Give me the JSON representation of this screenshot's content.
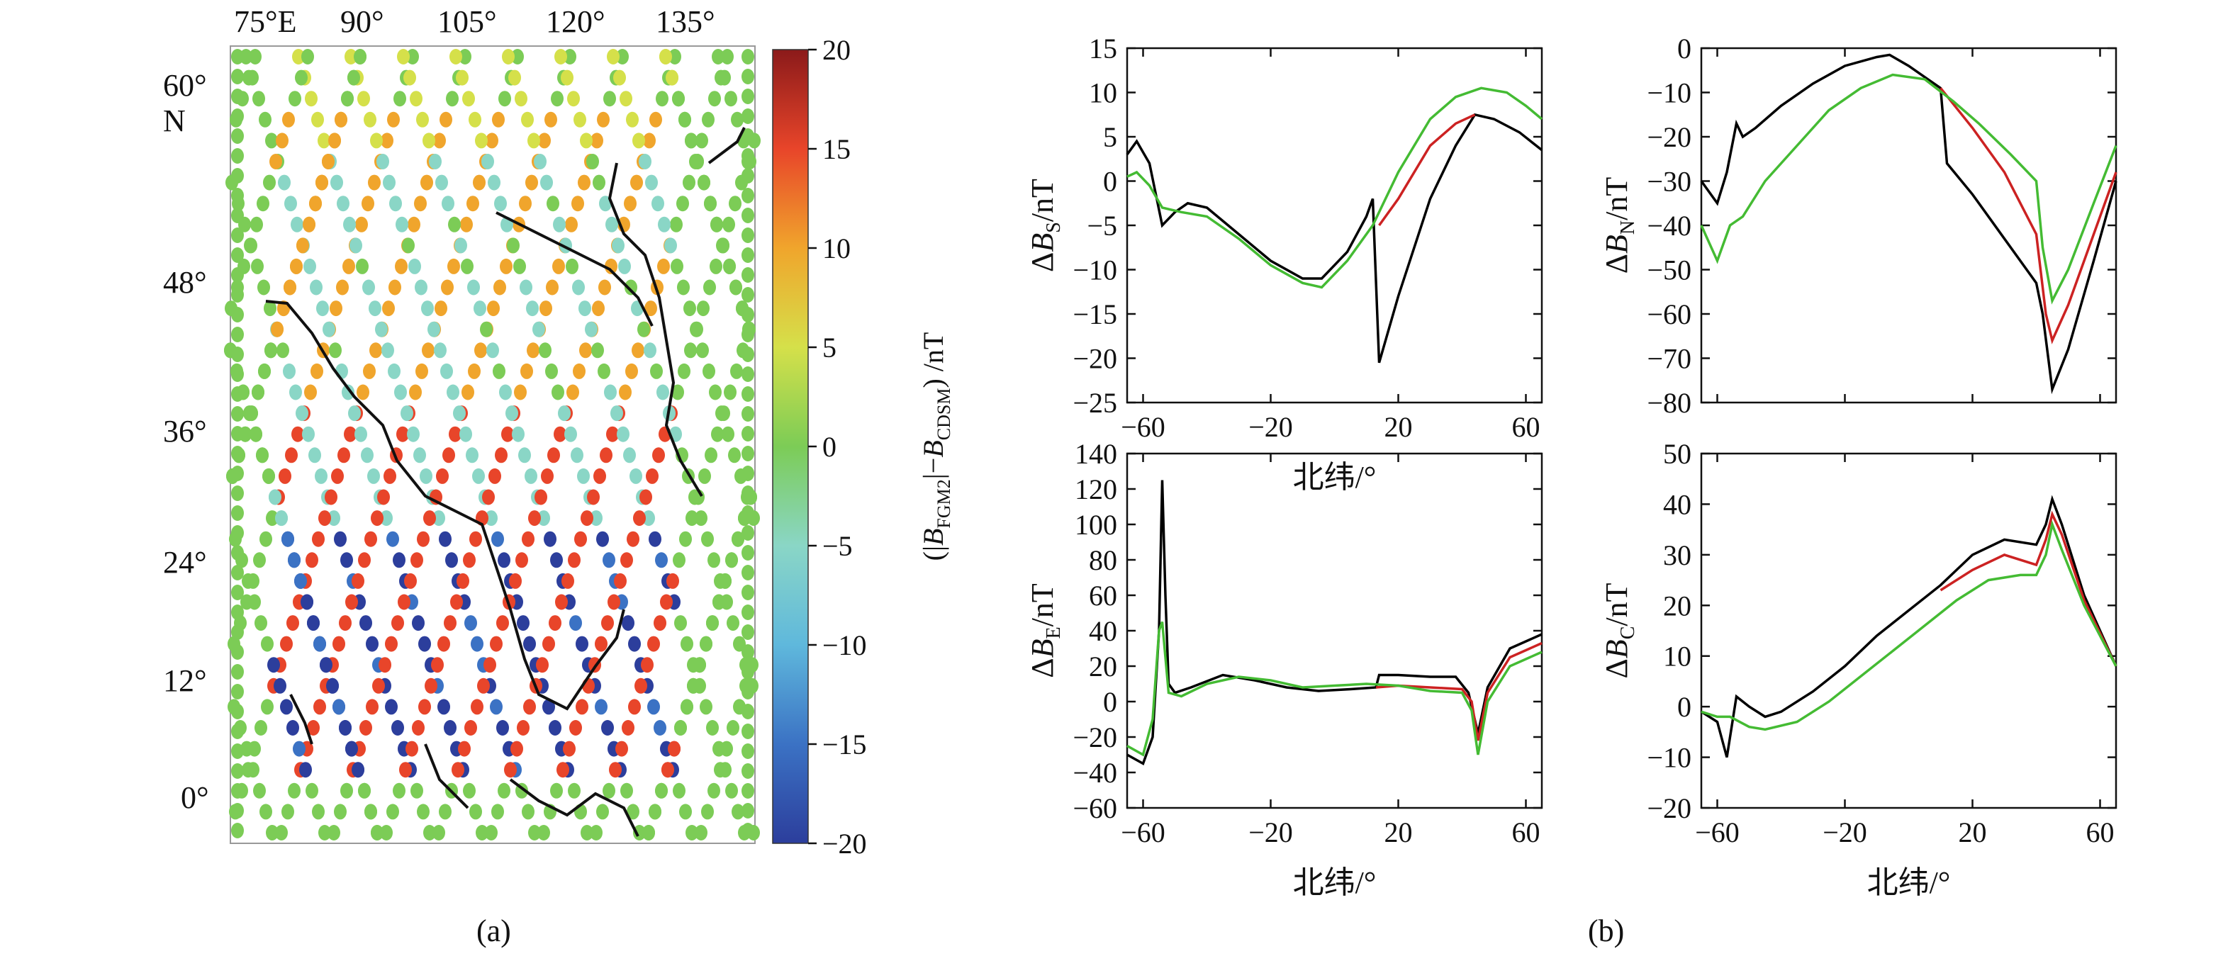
{
  "panel_labels": {
    "a": "(a)",
    "b": "(b)"
  },
  "map": {
    "lon_ticks": [
      "75°E",
      "90°",
      "105°",
      "120°",
      "135°"
    ],
    "lat_ticks": [
      "60°\nN",
      "48°",
      "36°",
      "24°",
      "12°",
      "0°"
    ],
    "lat_tick_lines": [
      "60°",
      "N"
    ],
    "colorbar_label": "(|B_FGM2|−B_CDSM) /nT",
    "colorbar_ticks": [
      "20",
      "15",
      "10",
      "5",
      "0",
      "−5",
      "−10",
      "−15",
      "−20"
    ],
    "colorbar_range": [
      -20,
      20
    ],
    "colormap": [
      "#2c3e9c",
      "#3b72c4",
      "#5fb8dc",
      "#8ad6c6",
      "#7ccc56",
      "#d5e04a",
      "#f0a52c",
      "#e8452a",
      "#8b1a1a"
    ]
  },
  "chart_data": [
    {
      "type": "line",
      "ylabel": "ΔB_S/nT",
      "xlabel": "北纬/°",
      "xlim": [
        -65,
        65
      ],
      "ylim": [
        -25,
        15
      ],
      "xticks": [
        "−60",
        "−20",
        "20",
        "60"
      ],
      "yticks": [
        "15",
        "10",
        "5",
        "0",
        "−5",
        "−10",
        "−15",
        "−20",
        "−25"
      ],
      "series": [
        {
          "color": "#000000",
          "points": [
            [
              -65,
              3
            ],
            [
              -62,
              4.5
            ],
            [
              -58,
              2
            ],
            [
              -54,
              -5
            ],
            [
              -50,
              -3.5
            ],
            [
              -46,
              -2.5
            ],
            [
              -40,
              -3
            ],
            [
              -30,
              -6
            ],
            [
              -20,
              -9
            ],
            [
              -10,
              -11
            ],
            [
              -4,
              -11
            ],
            [
              4,
              -8
            ],
            [
              10,
              -4
            ],
            [
              12,
              -2
            ],
            [
              14,
              -20.5
            ],
            [
              20,
              -13
            ],
            [
              30,
              -2
            ],
            [
              38,
              4
            ],
            [
              44,
              7.5
            ],
            [
              50,
              7
            ],
            [
              58,
              5.5
            ],
            [
              65,
              3.5
            ]
          ]
        },
        {
          "color": "#cc2222",
          "points": [
            [
              14,
              -5
            ],
            [
              20,
              -2
            ],
            [
              30,
              4
            ],
            [
              38,
              6.5
            ],
            [
              44,
              7.5
            ]
          ]
        },
        {
          "color": "#44bb33",
          "points": [
            [
              -65,
              0.5
            ],
            [
              -62,
              1
            ],
            [
              -58,
              -0.5
            ],
            [
              -54,
              -3
            ],
            [
              -48,
              -3.5
            ],
            [
              -40,
              -4
            ],
            [
              -30,
              -6.5
            ],
            [
              -20,
              -9.5
            ],
            [
              -10,
              -11.5
            ],
            [
              -4,
              -12
            ],
            [
              4,
              -9
            ],
            [
              12,
              -5
            ],
            [
              20,
              1
            ],
            [
              30,
              7
            ],
            [
              38,
              9.5
            ],
            [
              46,
              10.5
            ],
            [
              54,
              10
            ],
            [
              60,
              8.5
            ],
            [
              65,
              7
            ]
          ]
        }
      ]
    },
    {
      "type": "line",
      "ylabel": "ΔB_N/nT",
      "xlabel": "",
      "xlim": [
        -65,
        65
      ],
      "ylim": [
        -80,
        0
      ],
      "xticks": [],
      "yticks": [
        "0",
        "−10",
        "−20",
        "−30",
        "−40",
        "−50",
        "−60",
        "−70",
        "−80"
      ],
      "series": [
        {
          "color": "#000000",
          "points": [
            [
              -65,
              -30
            ],
            [
              -60,
              -35
            ],
            [
              -57,
              -28
            ],
            [
              -54,
              -17
            ],
            [
              -52,
              -20
            ],
            [
              -48,
              -18
            ],
            [
              -40,
              -13
            ],
            [
              -30,
              -8
            ],
            [
              -20,
              -4
            ],
            [
              -10,
              -2
            ],
            [
              -6,
              -1.5
            ],
            [
              0,
              -4
            ],
            [
              6,
              -7
            ],
            [
              10,
              -9
            ],
            [
              12,
              -26
            ],
            [
              20,
              -33
            ],
            [
              30,
              -43
            ],
            [
              40,
              -53
            ],
            [
              42,
              -60
            ],
            [
              45,
              -77
            ],
            [
              50,
              -68
            ],
            [
              58,
              -48
            ],
            [
              65,
              -30
            ]
          ]
        },
        {
          "color": "#cc2222",
          "points": [
            [
              10,
              -9
            ],
            [
              20,
              -18
            ],
            [
              30,
              -28
            ],
            [
              40,
              -42
            ],
            [
              43,
              -60
            ],
            [
              45,
              -66
            ],
            [
              50,
              -58
            ],
            [
              58,
              -42
            ],
            [
              65,
              -28
            ]
          ]
        },
        {
          "color": "#44bb33",
          "points": [
            [
              -65,
              -40
            ],
            [
              -60,
              -48
            ],
            [
              -56,
              -40
            ],
            [
              -52,
              -38
            ],
            [
              -45,
              -30
            ],
            [
              -35,
              -22
            ],
            [
              -25,
              -14
            ],
            [
              -15,
              -9
            ],
            [
              -5,
              -6
            ],
            [
              5,
              -7
            ],
            [
              14,
              -12
            ],
            [
              22,
              -17
            ],
            [
              32,
              -24
            ],
            [
              40,
              -30
            ],
            [
              42,
              -45
            ],
            [
              45,
              -57
            ],
            [
              50,
              -50
            ],
            [
              58,
              -35
            ],
            [
              65,
              -22
            ]
          ]
        }
      ]
    },
    {
      "type": "line",
      "ylabel": "ΔB_E/nT",
      "xlabel": "北纬/°",
      "xlim": [
        -65,
        65
      ],
      "ylim": [
        -60,
        140
      ],
      "xticks": [
        "−60",
        "−20",
        "20",
        "60"
      ],
      "yticks": [
        "140",
        "120",
        "100",
        "80",
        "60",
        "40",
        "20",
        "0",
        "−20",
        "−40",
        "−60"
      ],
      "series": [
        {
          "color": "#000000",
          "points": [
            [
              -65,
              -30
            ],
            [
              -60,
              -35
            ],
            [
              -57,
              -20
            ],
            [
              -55,
              40
            ],
            [
              -54,
              125
            ],
            [
              -53,
              60
            ],
            [
              -52,
              10
            ],
            [
              -50,
              5
            ],
            [
              -45,
              8
            ],
            [
              -35,
              15
            ],
            [
              -25,
              12
            ],
            [
              -15,
              8
            ],
            [
              -5,
              6
            ],
            [
              5,
              7
            ],
            [
              13,
              8
            ],
            [
              14,
              15
            ],
            [
              20,
              15
            ],
            [
              30,
              14
            ],
            [
              38,
              14
            ],
            [
              42,
              5
            ],
            [
              45,
              -18
            ],
            [
              48,
              8
            ],
            [
              55,
              30
            ],
            [
              65,
              38
            ]
          ]
        },
        {
          "color": "#cc2222",
          "points": [
            [
              13,
              8
            ],
            [
              20,
              9
            ],
            [
              30,
              8
            ],
            [
              40,
              7
            ],
            [
              43,
              0
            ],
            [
              45,
              -22
            ],
            [
              48,
              5
            ],
            [
              55,
              25
            ],
            [
              65,
              33
            ]
          ]
        },
        {
          "color": "#44bb33",
          "points": [
            [
              -65,
              -25
            ],
            [
              -60,
              -30
            ],
            [
              -57,
              -10
            ],
            [
              -55,
              40
            ],
            [
              -54,
              45
            ],
            [
              -52,
              5
            ],
            [
              -48,
              3
            ],
            [
              -40,
              10
            ],
            [
              -30,
              14
            ],
            [
              -20,
              12
            ],
            [
              -10,
              8
            ],
            [
              0,
              9
            ],
            [
              10,
              10
            ],
            [
              20,
              9
            ],
            [
              30,
              6
            ],
            [
              40,
              5
            ],
            [
              43,
              -5
            ],
            [
              45,
              -30
            ],
            [
              48,
              0
            ],
            [
              55,
              20
            ],
            [
              65,
              28
            ]
          ]
        }
      ]
    },
    {
      "type": "line",
      "ylabel": "ΔB_C/nT",
      "xlabel": "北纬/°",
      "xlim": [
        -65,
        65
      ],
      "ylim": [
        -20,
        50
      ],
      "xticks": [
        "−60",
        "−20",
        "20",
        "60"
      ],
      "yticks": [
        "50",
        "40",
        "30",
        "20",
        "10",
        "0",
        "−10",
        "−20"
      ],
      "series": [
        {
          "color": "#000000",
          "points": [
            [
              -65,
              -1
            ],
            [
              -60,
              -3
            ],
            [
              -57,
              -10
            ],
            [
              -54,
              2
            ],
            [
              -50,
              0
            ],
            [
              -45,
              -2
            ],
            [
              -40,
              -1
            ],
            [
              -30,
              3
            ],
            [
              -20,
              8
            ],
            [
              -10,
              14
            ],
            [
              0,
              19
            ],
            [
              10,
              24
            ],
            [
              20,
              30
            ],
            [
              30,
              33
            ],
            [
              40,
              32
            ],
            [
              43,
              36
            ],
            [
              45,
              41
            ],
            [
              48,
              36
            ],
            [
              55,
              22
            ],
            [
              65,
              8
            ]
          ]
        },
        {
          "color": "#cc2222",
          "points": [
            [
              10,
              23
            ],
            [
              20,
              27
            ],
            [
              30,
              30
            ],
            [
              40,
              28
            ],
            [
              43,
              33
            ],
            [
              45,
              38
            ],
            [
              48,
              34
            ],
            [
              55,
              21
            ],
            [
              65,
              8
            ]
          ]
        },
        {
          "color": "#44bb33",
          "points": [
            [
              -65,
              -1
            ],
            [
              -60,
              -2
            ],
            [
              -56,
              -2
            ],
            [
              -50,
              -4
            ],
            [
              -45,
              -4.5
            ],
            [
              -35,
              -3
            ],
            [
              -25,
              1
            ],
            [
              -15,
              6
            ],
            [
              -5,
              11
            ],
            [
              5,
              16
            ],
            [
              15,
              21
            ],
            [
              25,
              25
            ],
            [
              35,
              26
            ],
            [
              40,
              26
            ],
            [
              43,
              30
            ],
            [
              45,
              36
            ],
            [
              48,
              31
            ],
            [
              55,
              20
            ],
            [
              65,
              8
            ]
          ]
        }
      ]
    }
  ]
}
